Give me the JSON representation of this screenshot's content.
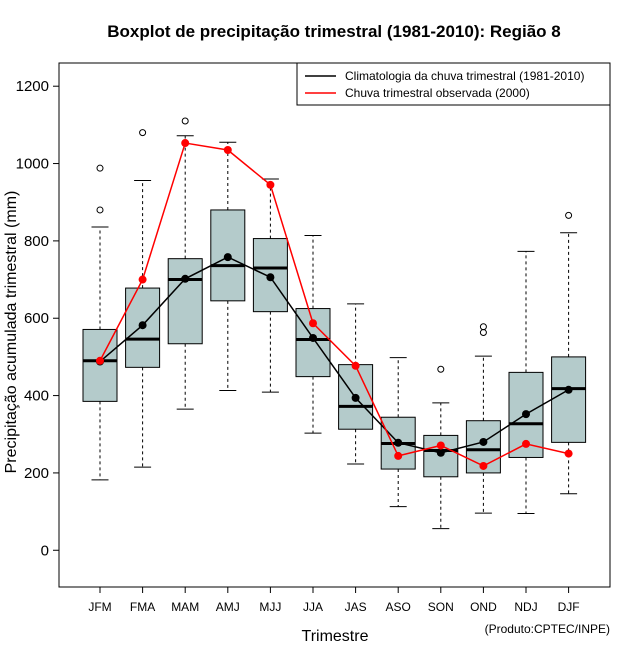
{
  "chart_data": {
    "type": "boxplot",
    "title": "Boxplot de precipitação trimestral (1981-2010): Região 8",
    "xlabel": "Trimestre",
    "ylabel": "Precipitação acumulada trimestral (mm)",
    "credit": "(Produto:CPTEC/INPE)",
    "ylim": [
      -95,
      1260
    ],
    "yticks": [
      0,
      200,
      400,
      600,
      800,
      1000,
      1200
    ],
    "categories": [
      "JFM",
      "FMA",
      "MAM",
      "AMJ",
      "MJJ",
      "JJA",
      "JAS",
      "ASO",
      "SON",
      "OND",
      "NDJ",
      "DJF"
    ],
    "boxes": [
      {
        "min": 182,
        "q1": 385,
        "median": 490,
        "q3": 571,
        "max": 836,
        "outliers": [
          880,
          988
        ]
      },
      {
        "min": 215,
        "q1": 473,
        "median": 546,
        "q3": 678,
        "max": 956,
        "outliers": [
          1080
        ]
      },
      {
        "min": 365,
        "q1": 534,
        "median": 700,
        "q3": 754,
        "max": 1072,
        "outliers": [
          1110
        ]
      },
      {
        "min": 413,
        "q1": 645,
        "median": 736,
        "q3": 880,
        "max": 1055,
        "outliers": []
      },
      {
        "min": 409,
        "q1": 617,
        "median": 730,
        "q3": 806,
        "max": 960,
        "outliers": []
      },
      {
        "min": 303,
        "q1": 449,
        "median": 545,
        "q3": 625,
        "max": 814,
        "outliers": []
      },
      {
        "min": 223,
        "q1": 313,
        "median": 372,
        "q3": 480,
        "max": 637,
        "outliers": []
      },
      {
        "min": 113,
        "q1": 210,
        "median": 276,
        "q3": 344,
        "max": 498,
        "outliers": []
      },
      {
        "min": 56,
        "q1": 190,
        "median": 258,
        "q3": 297,
        "max": 381,
        "outliers": [
          468
        ]
      },
      {
        "min": 96,
        "q1": 200,
        "median": 260,
        "q3": 335,
        "max": 502,
        "outliers": [
          563,
          578
        ]
      },
      {
        "min": 95,
        "q1": 240,
        "median": 327,
        "q3": 460,
        "max": 773,
        "outliers": []
      },
      {
        "min": 146,
        "q1": 279,
        "median": 418,
        "q3": 500,
        "max": 821,
        "outliers": [
          866
        ]
      }
    ],
    "series": [
      {
        "name": "Climatologia da chuva trimestral (1981-2010)",
        "color": "#000000",
        "values": [
          488,
          582,
          702,
          758,
          706,
          549,
          394,
          278,
          252,
          280,
          352,
          415
        ]
      },
      {
        "name": "Chuva trimestral observada (2000)",
        "color": "#ff0000",
        "values": [
          490,
          700,
          1053,
          1035,
          945,
          587,
          477,
          244,
          271,
          218,
          275,
          250
        ]
      }
    ],
    "legend_position": "top-right",
    "box_fill": "#b4cbcb"
  }
}
